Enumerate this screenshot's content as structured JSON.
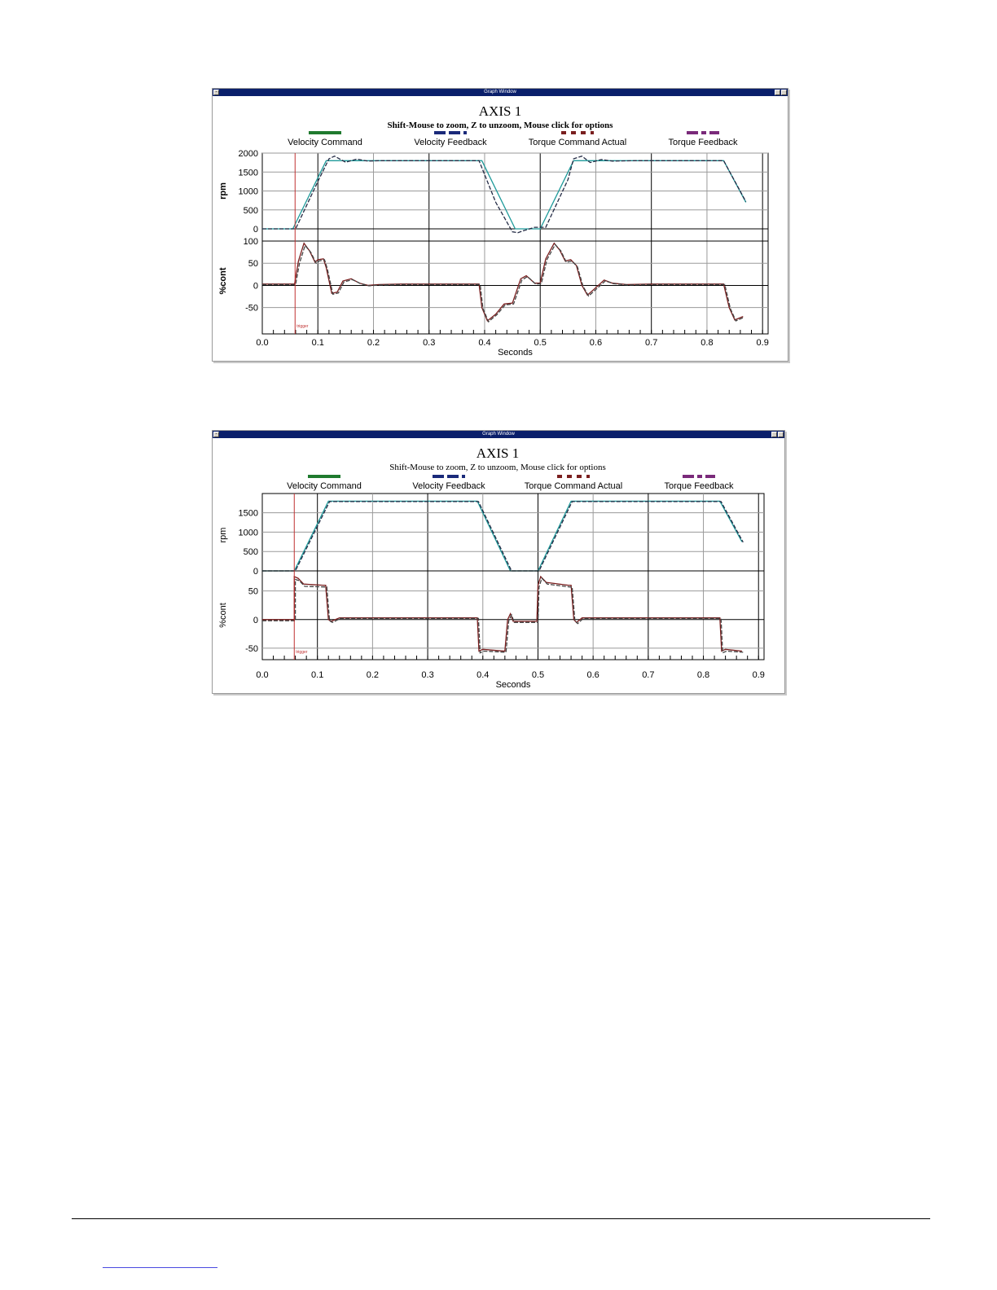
{
  "windows": [
    {
      "title": "Graph Window"
    },
    {
      "title": "Graph Window"
    }
  ],
  "chart_data": [
    {
      "type": "line",
      "title": "AXIS 1",
      "subtitle": "Shift-Mouse to zoom, Z to unzoom, Mouse click for options",
      "xlabel": "Seconds",
      "xlim": [
        0,
        0.91
      ],
      "xticks": [
        "0.0",
        "0.1",
        "0.2",
        "0.3",
        "0.4",
        "0.5",
        "0.6",
        "0.7",
        "0.8",
        "0.9"
      ],
      "grid": true,
      "legend_position": "top",
      "legend": [
        {
          "name": "Velocity Command",
          "color": "#1f7a2e",
          "style": "solid"
        },
        {
          "name": "Velocity Feedback",
          "color": "#1a2a7a",
          "style": "dash"
        },
        {
          "name": "Torque Command Actual",
          "color": "#7a1f1f",
          "style": "dot"
        },
        {
          "name": "Torque Feedback",
          "color": "#7a2a7a",
          "style": "dashdot"
        }
      ],
      "trigger_label": "trigger",
      "panels": [
        {
          "ylabel": "rpm",
          "ylim": [
            0,
            2000
          ],
          "yticks": [
            "2000",
            "1500",
            "1000",
            "500",
            "0"
          ],
          "series": [
            {
              "name": "Velocity Command",
              "color": "#1f9a9a",
              "x": [
                0,
                0.055,
                0.115,
                0.395,
                0.455,
                0.5,
                0.56,
                0.83,
                0.87
              ],
              "y": [
                0,
                0,
                1800,
                1800,
                0,
                0,
                1800,
                1800,
                700
              ]
            },
            {
              "name": "Velocity Feedback",
              "color": "#222a44",
              "x": [
                0,
                0.06,
                0.1,
                0.12,
                0.13,
                0.15,
                0.17,
                0.19,
                0.21,
                0.25,
                0.39,
                0.42,
                0.45,
                0.46,
                0.47,
                0.49,
                0.51,
                0.55,
                0.56,
                0.575,
                0.59,
                0.61,
                0.63,
                0.67,
                0.83,
                0.87
              ],
              "y": [
                0,
                0,
                1250,
                1850,
                1920,
                1760,
                1840,
                1790,
                1800,
                1800,
                1800,
                700,
                -80,
                -100,
                -50,
                40,
                40,
                1300,
                1850,
                1920,
                1750,
                1830,
                1790,
                1800,
                1800,
                720
              ]
            }
          ]
        },
        {
          "ylabel": "%cont",
          "ylim": [
            -80,
            100
          ],
          "yticks": [
            "100",
            "50",
            "0",
            "-50"
          ],
          "series": [
            {
              "name": "Torque Command Actual",
              "color": "#7a1f1f",
              "x": [
                0,
                0.058,
                0.065,
                0.075,
                0.085,
                0.095,
                0.1,
                0.11,
                0.115,
                0.125,
                0.135,
                0.145,
                0.16,
                0.175,
                0.19,
                0.21,
                0.25,
                0.39,
                0.395,
                0.405,
                0.42,
                0.435,
                0.45,
                0.465,
                0.475,
                0.49,
                0.5,
                0.51,
                0.525,
                0.535,
                0.545,
                0.555,
                0.565,
                0.575,
                0.585,
                0.6,
                0.615,
                0.63,
                0.655,
                0.7,
                0.83,
                0.84,
                0.85,
                0.865
              ],
              "y": [
                3,
                3,
                55,
                95,
                78,
                52,
                58,
                60,
                40,
                -18,
                -15,
                10,
                15,
                5,
                0,
                2,
                3,
                3,
                -50,
                -80,
                -65,
                -42,
                -40,
                15,
                22,
                5,
                5,
                60,
                95,
                80,
                55,
                58,
                45,
                0,
                -22,
                -5,
                12,
                5,
                2,
                3,
                3,
                -50,
                -78,
                -70
              ]
            },
            {
              "name": "Torque Feedback",
              "color": "#444444",
              "x": [
                0,
                0.06,
                0.067,
                0.077,
                0.087,
                0.097,
                0.102,
                0.112,
                0.117,
                0.127,
                0.137,
                0.147,
                0.162,
                0.177,
                0.192,
                0.212,
                0.25,
                0.392,
                0.397,
                0.407,
                0.422,
                0.437,
                0.452,
                0.467,
                0.477,
                0.492,
                0.502,
                0.512,
                0.527,
                0.537,
                0.547,
                0.557,
                0.567,
                0.577,
                0.587,
                0.602,
                0.617,
                0.632,
                0.657,
                0.7,
                0.832,
                0.842,
                0.852,
                0.867
              ],
              "y": [
                2,
                2,
                50,
                90,
                75,
                50,
                55,
                58,
                38,
                -20,
                -17,
                8,
                13,
                4,
                -1,
                1,
                2,
                2,
                -52,
                -82,
                -66,
                -44,
                -42,
                12,
                20,
                3,
                4,
                58,
                92,
                78,
                52,
                55,
                42,
                -2,
                -24,
                -7,
                10,
                4,
                1,
                2,
                2,
                -52,
                -80,
                -72
              ]
            }
          ]
        }
      ]
    },
    {
      "type": "line",
      "title": "AXIS 1",
      "subtitle": "Shift-Mouse to zoom, Z to unzoom, Mouse click for options",
      "xlabel": "Seconds",
      "xlim": [
        0,
        0.91
      ],
      "xticks": [
        "0.0",
        "0.1",
        "0.2",
        "0.3",
        "0.4",
        "0.5",
        "0.6",
        "0.7",
        "0.8",
        "0.9"
      ],
      "grid": true,
      "legend_position": "top",
      "legend": [
        {
          "name": "Velocity Command",
          "color": "#1f7a2e",
          "style": "solid"
        },
        {
          "name": "Velocity Feedback",
          "color": "#1a2a7a",
          "style": "dash"
        },
        {
          "name": "Torque Command Actual",
          "color": "#7a1f1f",
          "style": "dot"
        },
        {
          "name": "Torque Feedback",
          "color": "#7a2a7a",
          "style": "dashdot"
        }
      ],
      "trigger_label": "trigger",
      "panels": [
        {
          "ylabel": "rpm",
          "ylim": [
            0,
            1850
          ],
          "yticks": [
            "1500",
            "1000",
            "500",
            "0"
          ],
          "series": [
            {
              "name": "Velocity Command",
              "color": "#1f9a9a",
              "x": [
                0,
                0.058,
                0.12,
                0.39,
                0.45,
                0.5,
                0.56,
                0.83,
                0.87
              ],
              "y": [
                0,
                0,
                1800,
                1800,
                0,
                0,
                1800,
                1800,
                750
              ]
            },
            {
              "name": "Velocity Feedback",
              "color": "#222a44",
              "x": [
                0,
                0.06,
                0.122,
                0.392,
                0.452,
                0.502,
                0.562,
                0.832,
                0.872
              ],
              "y": [
                0,
                0,
                1790,
                1790,
                0,
                0,
                1790,
                1790,
                740
              ]
            }
          ]
        },
        {
          "ylabel": "%cont",
          "ylim": [
            -70,
            85
          ],
          "yticks": [
            "50",
            "0",
            "-50"
          ],
          "series": [
            {
              "name": "Torque Command Actual",
              "color": "#7a1f1f",
              "x": [
                0,
                0.058,
                0.058,
                0.065,
                0.075,
                0.11,
                0.115,
                0.12,
                0.125,
                0.14,
                0.39,
                0.393,
                0.4,
                0.44,
                0.445,
                0.45,
                0.455,
                0.498,
                0.5,
                0.505,
                0.515,
                0.555,
                0.56,
                0.565,
                0.57,
                0.58,
                0.83,
                0.833,
                0.84,
                0.87
              ],
              "y": [
                0,
                0,
                75,
                72,
                62,
                60,
                60,
                0,
                -3,
                3,
                3,
                -55,
                -52,
                -55,
                0,
                10,
                -3,
                -3,
                60,
                75,
                65,
                60,
                60,
                0,
                -5,
                3,
                3,
                -55,
                -52,
                -55
              ]
            },
            {
              "name": "Torque Feedback",
              "color": "#444444",
              "x": [
                0,
                0.06,
                0.06,
                0.067,
                0.077,
                0.112,
                0.117,
                0.122,
                0.127,
                0.142,
                0.392,
                0.395,
                0.402,
                0.442,
                0.447,
                0.452,
                0.457,
                0.5,
                0.502,
                0.507,
                0.517,
                0.557,
                0.562,
                0.567,
                0.572,
                0.582,
                0.832,
                0.835,
                0.842,
                0.872
              ],
              "y": [
                -2,
                -2,
                70,
                68,
                58,
                57,
                57,
                -2,
                -5,
                2,
                2,
                -58,
                -55,
                -57,
                -2,
                8,
                -5,
                -5,
                57,
                72,
                62,
                57,
                57,
                -2,
                -7,
                2,
                2,
                -58,
                -55,
                -57
              ]
            }
          ]
        }
      ]
    }
  ]
}
